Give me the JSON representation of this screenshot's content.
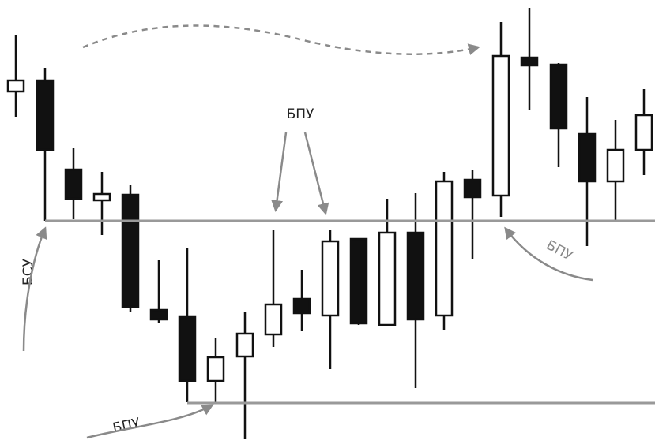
{
  "labels": {
    "top": "БПУ",
    "left": "БСУ",
    "bottom": "БПУ",
    "right": "БПУ"
  }
}
